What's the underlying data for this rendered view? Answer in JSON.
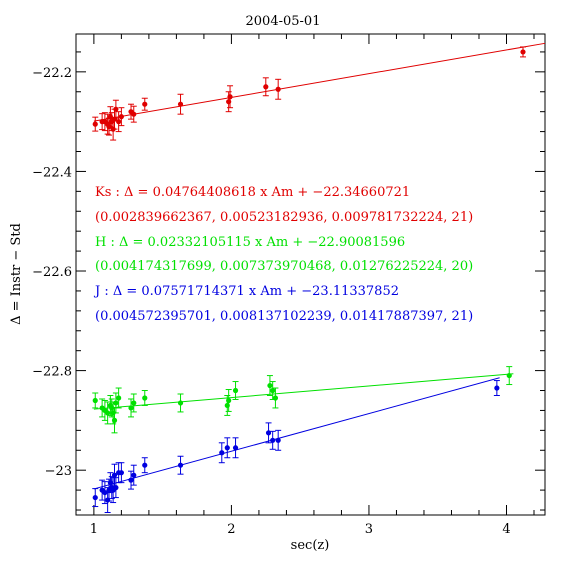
{
  "chart_data": {
    "type": "scatter",
    "title": "2004-05-01",
    "xlabel": "sec(z)",
    "ylabel": "Δ = Instr − Std",
    "xlim": [
      0.87,
      4.28
    ],
    "ylim": [
      -23.09,
      -22.124
    ],
    "x_ticks": [
      1,
      2,
      3,
      4
    ],
    "y_ticks": [
      -23,
      -22.8,
      -22.6,
      -22.4,
      -22.2
    ],
    "x_tick_labels": [
      "1",
      "2",
      "3",
      "4"
    ],
    "y_tick_labels": [
      "−23",
      "−22.8",
      "−22.6",
      "−22.4",
      "−22.2"
    ],
    "grid": false,
    "annotations": [
      "Ks : Δ  = 0.04764408618 x Am + −22.34660721",
      "(0.002839662367, 0.00523182936, 0.009781732224, 21)",
      "H : Δ  = 0.02332105115 x Am + −22.90081596",
      "(0.004174317699, 0.007373970468, 0.01276225224, 20)",
      "J : Δ  = 0.07571714371 x Am + −23.11337852",
      "(0.004572395701, 0.008137102239, 0.01417887397, 21)"
    ],
    "series": [
      {
        "name": "Ks",
        "color": "#e00000",
        "fit": {
          "slope": 0.04764408618,
          "intercept": -22.34660721,
          "x_range": [
            1.0,
            4.28
          ]
        },
        "x": [
          1.01,
          1.06,
          1.08,
          1.1,
          1.11,
          1.12,
          1.13,
          1.14,
          1.15,
          1.16,
          1.18,
          1.2,
          1.27,
          1.29,
          1.37,
          1.63,
          1.98,
          1.99,
          2.25,
          2.34,
          4.12
        ],
        "y": [
          -22.305,
          -22.3,
          -22.3,
          -22.305,
          -22.31,
          -22.29,
          -22.3,
          -22.315,
          -22.295,
          -22.275,
          -22.3,
          -22.29,
          -22.28,
          -22.285,
          -22.265,
          -22.265,
          -22.26,
          -22.25,
          -22.23,
          -22.235,
          -22.16
        ],
        "err": [
          0.014,
          0.016,
          0.018,
          0.02,
          0.017,
          0.02,
          0.018,
          0.022,
          0.02,
          0.018,
          0.02,
          0.018,
          0.015,
          0.016,
          0.012,
          0.02,
          0.02,
          0.022,
          0.018,
          0.02,
          0.01
        ]
      },
      {
        "name": "H",
        "color": "#00e000",
        "fit": {
          "slope": 0.02332105115,
          "intercept": -22.90081596,
          "x_range": [
            1.0,
            4.05
          ]
        },
        "x": [
          1.01,
          1.06,
          1.08,
          1.1,
          1.12,
          1.13,
          1.14,
          1.15,
          1.16,
          1.18,
          1.27,
          1.29,
          1.37,
          1.63,
          1.97,
          1.98,
          2.03,
          2.28,
          2.3,
          2.32,
          4.02
        ],
        "y": [
          -22.86,
          -22.875,
          -22.88,
          -22.885,
          -22.87,
          -22.875,
          -22.885,
          -22.9,
          -22.865,
          -22.855,
          -22.875,
          -22.865,
          -22.855,
          -22.865,
          -22.87,
          -22.86,
          -22.84,
          -22.83,
          -22.84,
          -22.855,
          -22.81
        ],
        "err": [
          0.015,
          0.018,
          0.02,
          0.022,
          0.02,
          0.018,
          0.022,
          0.025,
          0.02,
          0.02,
          0.018,
          0.018,
          0.015,
          0.018,
          0.02,
          0.022,
          0.018,
          0.02,
          0.018,
          0.02,
          0.018
        ]
      },
      {
        "name": "J",
        "color": "#0000e0",
        "fit": {
          "slope": 0.07571714371,
          "intercept": -23.11337852,
          "x_range": [
            1.0,
            3.95
          ]
        },
        "x": [
          1.01,
          1.06,
          1.08,
          1.1,
          1.11,
          1.12,
          1.13,
          1.14,
          1.15,
          1.16,
          1.18,
          1.2,
          1.27,
          1.29,
          1.37,
          1.63,
          1.93,
          1.97,
          2.03,
          2.27,
          2.3,
          2.34,
          3.93
        ],
        "y": [
          -23.055,
          -23.04,
          -23.045,
          -23.06,
          -23.04,
          -23.025,
          -23.035,
          -23.04,
          -23.01,
          -23.035,
          -23.005,
          -23.005,
          -23.02,
          -23.01,
          -22.99,
          -22.99,
          -22.965,
          -22.955,
          -22.955,
          -22.925,
          -22.94,
          -22.94,
          -22.835
        ],
        "err": [
          0.018,
          0.02,
          0.022,
          0.025,
          0.022,
          0.02,
          0.022,
          0.025,
          0.022,
          0.02,
          0.02,
          0.02,
          0.018,
          0.02,
          0.015,
          0.018,
          0.02,
          0.02,
          0.02,
          0.02,
          0.018,
          0.02,
          0.015
        ]
      }
    ]
  }
}
